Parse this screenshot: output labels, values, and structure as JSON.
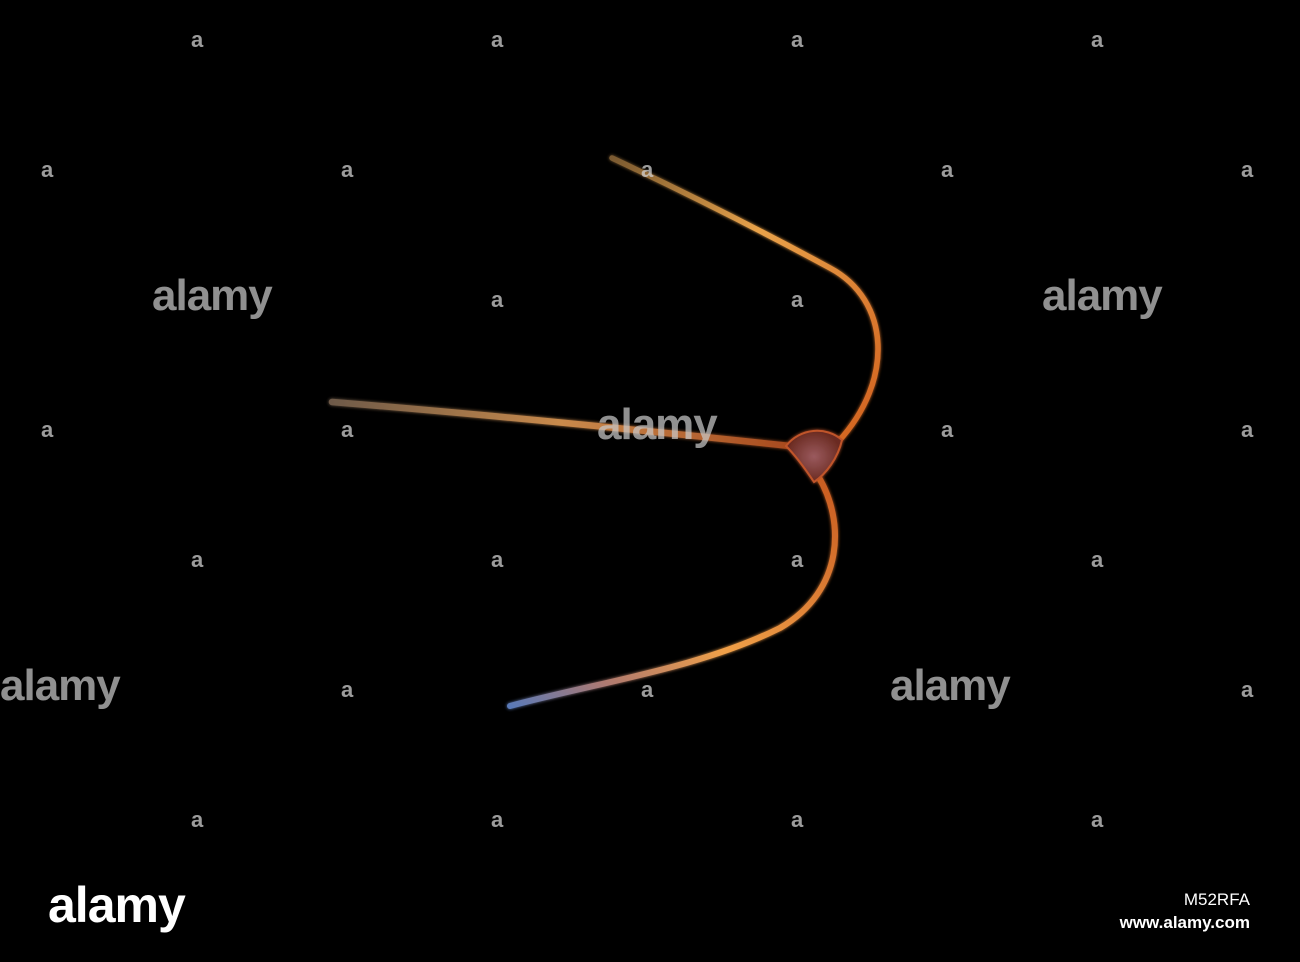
{
  "image": {
    "subject": "spicule",
    "background_color": "#000000",
    "spicule_colors": [
      "#8a3a14",
      "#d8722e",
      "#f2b25a",
      "#6a86b8"
    ]
  },
  "watermark": {
    "text": "alamy",
    "small_text": "a"
  },
  "footer": {
    "logo_text": "alamy",
    "image_id": "M52RFA",
    "site": "www.alamy.com"
  }
}
